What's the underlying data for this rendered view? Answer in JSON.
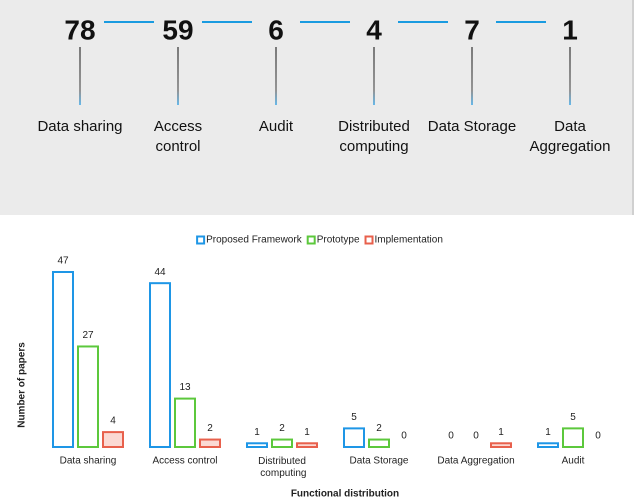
{
  "summary": {
    "items": [
      {
        "value": 78,
        "label_lines": [
          "Data sharing"
        ]
      },
      {
        "value": 59,
        "label_lines": [
          "Access",
          "control"
        ]
      },
      {
        "value": 6,
        "label_lines": [
          "Audit"
        ]
      },
      {
        "value": 4,
        "label_lines": [
          "Distributed",
          "computing"
        ]
      },
      {
        "value": 7,
        "label_lines": [
          "Data Storage"
        ]
      },
      {
        "value": 1,
        "label_lines": [
          "Data",
          "Aggregation"
        ]
      }
    ]
  },
  "chart_data": {
    "type": "bar",
    "x_label": "Functional distribution",
    "y_label": "Number of papers",
    "categories": [
      "Data sharing",
      "Access control",
      "Distributed computing",
      "Data Storage",
      "Data Aggregation",
      "Audit"
    ],
    "series": [
      {
        "name": "Proposed Framework",
        "color": "#1e96e6",
        "values": [
          47,
          44,
          1,
          5,
          0,
          1
        ]
      },
      {
        "name": "Prototype",
        "color": "#5cc83c",
        "values": [
          27,
          13,
          2,
          2,
          0,
          5
        ]
      },
      {
        "name": "Implementation",
        "color": "#e8604c",
        "values": [
          4,
          2,
          1,
          0,
          1,
          0
        ]
      }
    ],
    "legend": "top"
  }
}
